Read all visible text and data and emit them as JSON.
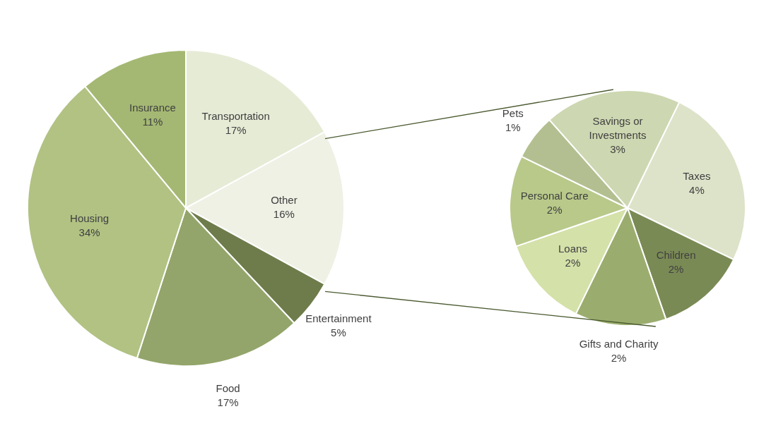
{
  "chart_data": [
    {
      "type": "pie",
      "categories": [
        "Transportation",
        "Other",
        "Entertainment",
        "Food",
        "Housing",
        "Insurance"
      ],
      "values": [
        17,
        16,
        5,
        17,
        34,
        11
      ],
      "colors": [
        "#e6ebd6",
        "#eef1e4",
        "#6e7c4b",
        "#93a56a",
        "#b1c283",
        "#a4b873"
      ],
      "value_labels": [
        "17%",
        "16%",
        "5%",
        "17%",
        "34%",
        "11%"
      ]
    },
    {
      "type": "pie",
      "categories": [
        "Taxes",
        "Children",
        "Gifts and Charity",
        "Loans",
        "Personal Care",
        "Pets",
        "Savings or Investments"
      ],
      "values": [
        4,
        2,
        2,
        2,
        2,
        1,
        3
      ],
      "colors": [
        "#dde3c9",
        "#7a8a55",
        "#9bad6e",
        "#d4e1a9",
        "#b8c98a",
        "#b3bf90",
        "#cdd7b1"
      ],
      "value_labels": [
        "4%",
        "2%",
        "2%",
        "2%",
        "2%",
        "1%",
        "3%"
      ]
    }
  ]
}
